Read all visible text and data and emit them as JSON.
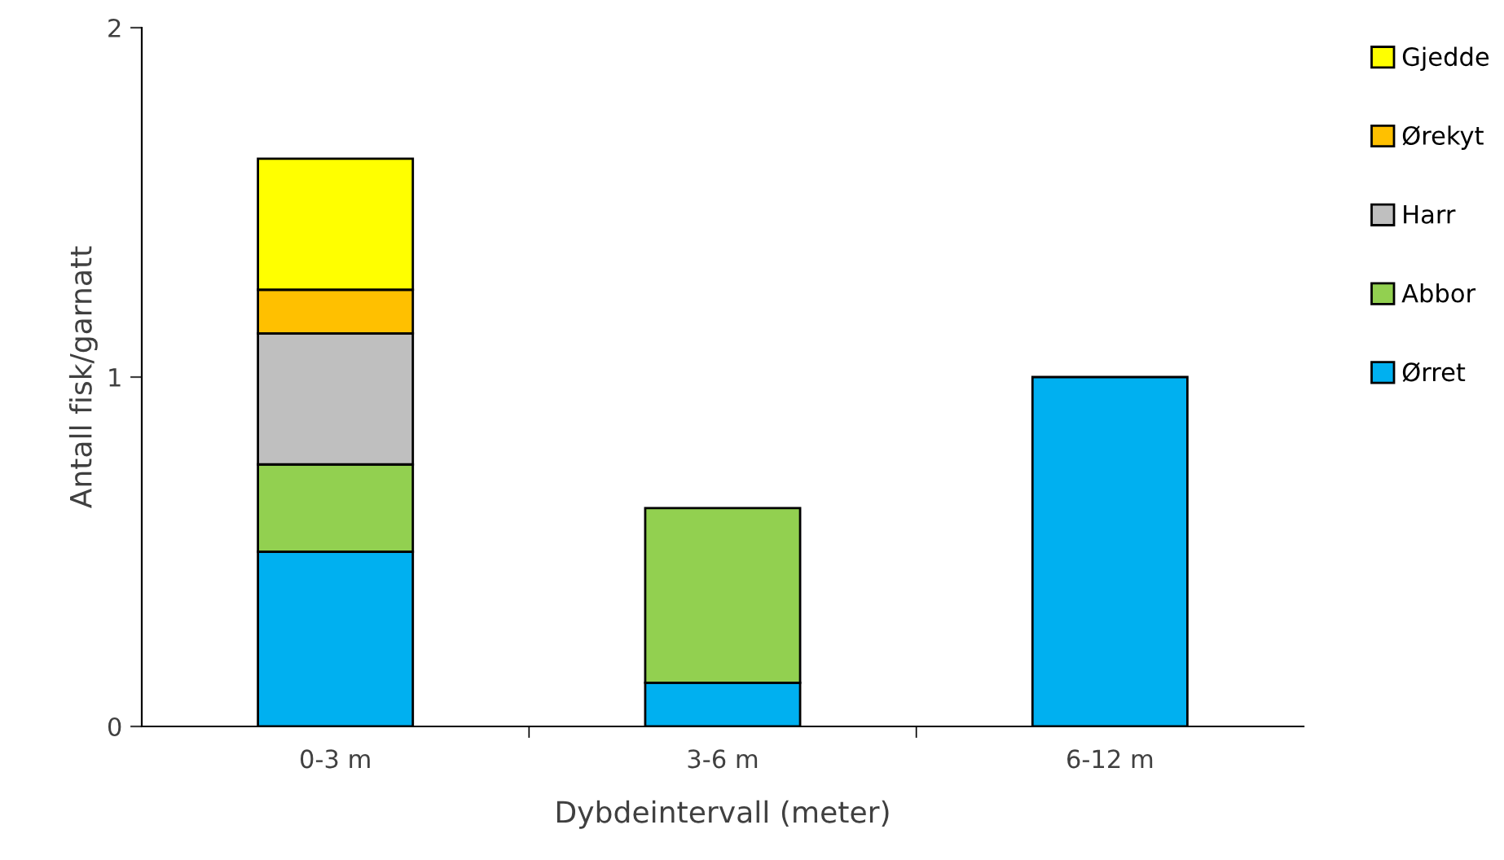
{
  "chart_data": {
    "type": "bar",
    "stacked": true,
    "xlabel": "Dybdeintervall (meter)",
    "ylabel": "Antall fisk/garnatt",
    "categories": [
      "0-3 m",
      "3-6 m",
      "6-12 m"
    ],
    "series": [
      {
        "name": "Ørret",
        "color": "#00b0f0",
        "values": [
          0.5,
          0.125,
          1
        ]
      },
      {
        "name": "Abbor",
        "color": "#92d050",
        "values": [
          0.25,
          0.5,
          0
        ]
      },
      {
        "name": "Harr",
        "color": "#bfbfbf",
        "values": [
          0.375,
          0,
          0
        ]
      },
      {
        "name": "Ørekyt",
        "color": "#ffc000",
        "values": [
          0.125,
          0,
          0
        ]
      },
      {
        "name": "Gjedde",
        "color": "#ffff00",
        "values": [
          0.375,
          0,
          0
        ]
      }
    ],
    "ylim": [
      0,
      2
    ],
    "yticks": [
      0,
      1,
      2
    ],
    "grid": false,
    "legend": "right"
  }
}
